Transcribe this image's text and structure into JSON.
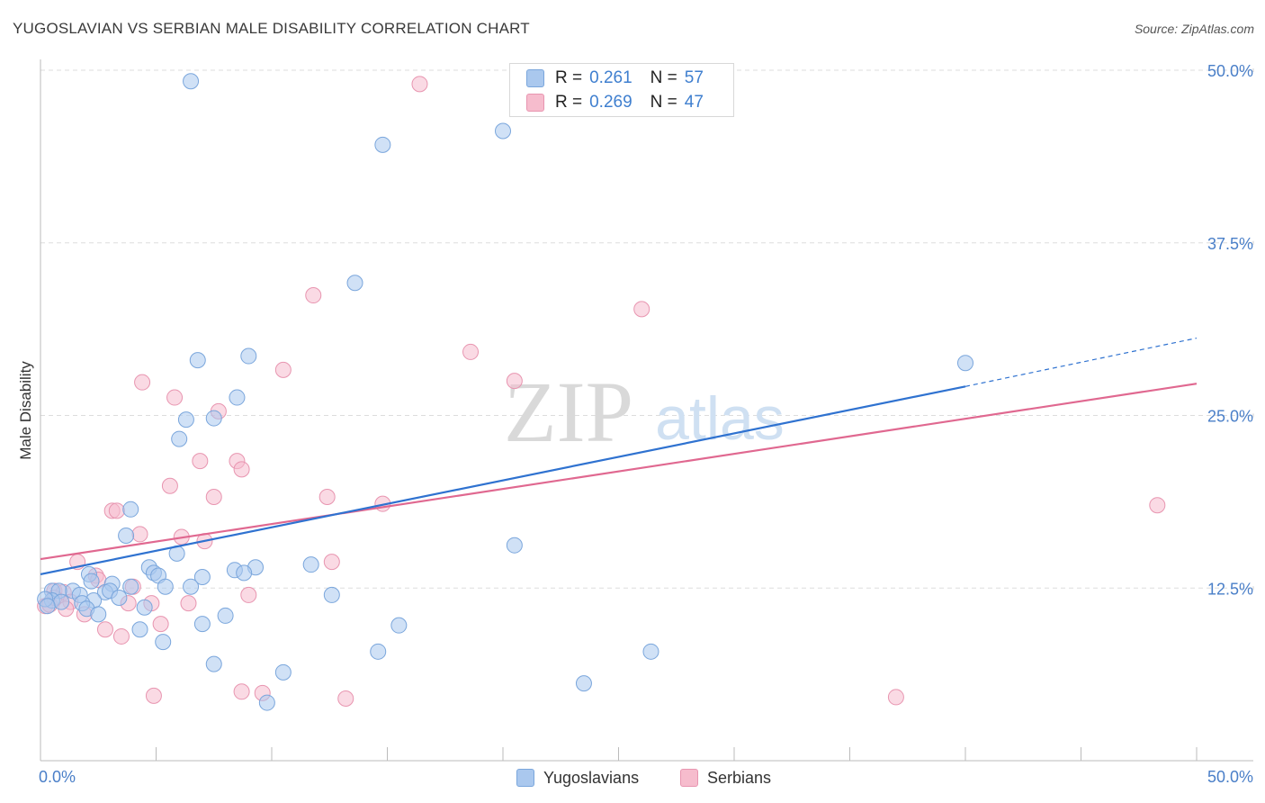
{
  "title": "YUGOSLAVIAN VS SERBIAN MALE DISABILITY CORRELATION CHART",
  "source": "Source: ZipAtlas.com",
  "watermark": {
    "zip": "ZIP",
    "atlas": "atlas"
  },
  "legend": {
    "rows": [
      {
        "r_label": "R =",
        "r_value": "0.261",
        "n_label": "N =",
        "n_value": "57"
      },
      {
        "r_label": "R =",
        "r_value": "0.269",
        "n_label": "N =",
        "n_value": "47"
      }
    ]
  },
  "colors": {
    "blue_fill": "#aac8ee",
    "blue_stroke": "#7aa6dc",
    "blue_line": "#2f72d0",
    "pink_fill": "#f6bccd",
    "pink_stroke": "#e895b0",
    "pink_line": "#e06890",
    "axis_label": "#4a7fc8",
    "grid": "#dddddd"
  },
  "chart_data": {
    "type": "scatter",
    "title": "YUGOSLAVIAN VS SERBIAN MALE DISABILITY CORRELATION CHART",
    "xlabel": "",
    "ylabel": "Male Disability",
    "xlim": [
      0,
      50
    ],
    "ylim": [
      0,
      50
    ],
    "x_tick_labels": [
      "0.0%",
      "50.0%"
    ],
    "y_ticks": [
      12.5,
      25.0,
      37.5,
      50.0
    ],
    "y_tick_labels": [
      "12.5%",
      "25.0%",
      "37.5%",
      "50.0%"
    ],
    "series": [
      {
        "name": "Yugoslavians",
        "r": 0.261,
        "n": 57,
        "trend": {
          "x0": 0,
          "y0": 13.5,
          "x1": 40,
          "y1": 27.1,
          "dash_to_x": 50,
          "dash_to_y": 30.6
        },
        "points": [
          [
            6.5,
            49.2
          ],
          [
            20,
            45.6
          ],
          [
            14.8,
            44.6
          ],
          [
            13.6,
            34.6
          ],
          [
            40,
            28.8
          ],
          [
            9,
            29.3
          ],
          [
            6.8,
            29
          ],
          [
            8.5,
            26.3
          ],
          [
            6.3,
            24.7
          ],
          [
            7.5,
            24.8
          ],
          [
            6,
            23.3
          ],
          [
            3.9,
            18.2
          ],
          [
            3.7,
            16.3
          ],
          [
            5.9,
            15
          ],
          [
            20.5,
            15.6
          ],
          [
            11.7,
            14.2
          ],
          [
            9.3,
            14
          ],
          [
            8.4,
            13.8
          ],
          [
            8.8,
            13.6
          ],
          [
            4.7,
            14
          ],
          [
            4.9,
            13.6
          ],
          [
            5.1,
            13.4
          ],
          [
            7,
            13.3
          ],
          [
            2.1,
            13.5
          ],
          [
            2.2,
            13
          ],
          [
            3.1,
            12.8
          ],
          [
            3.9,
            12.6
          ],
          [
            5.4,
            12.6
          ],
          [
            6.5,
            12.6
          ],
          [
            1.4,
            12.3
          ],
          [
            0.5,
            12.3
          ],
          [
            0.8,
            12.3
          ],
          [
            2.8,
            12.2
          ],
          [
            3.0,
            12.3
          ],
          [
            12.6,
            12
          ],
          [
            1.7,
            12
          ],
          [
            3.4,
            11.8
          ],
          [
            2.3,
            11.6
          ],
          [
            0.5,
            11.6
          ],
          [
            0.9,
            11.5
          ],
          [
            1.8,
            11.4
          ],
          [
            2.0,
            11.0
          ],
          [
            4.5,
            11.1
          ],
          [
            0.2,
            11.7
          ],
          [
            0.3,
            11.2
          ],
          [
            2.5,
            10.6
          ],
          [
            8,
            10.5
          ],
          [
            7,
            9.9
          ],
          [
            15.5,
            9.8
          ],
          [
            4.3,
            9.5
          ],
          [
            5.3,
            8.6
          ],
          [
            14.6,
            7.9
          ],
          [
            26.4,
            7.9
          ],
          [
            7.5,
            7
          ],
          [
            10.5,
            6.4
          ],
          [
            23.5,
            5.6
          ],
          [
            9.8,
            4.2
          ]
        ]
      },
      {
        "name": "Serbians",
        "r": 0.269,
        "n": 47,
        "trend": {
          "x0": 0,
          "y0": 14.6,
          "x1": 50,
          "y1": 27.3
        },
        "points": [
          [
            16.4,
            49
          ],
          [
            11.8,
            33.7
          ],
          [
            26,
            32.7
          ],
          [
            18.6,
            29.6
          ],
          [
            20.5,
            27.5
          ],
          [
            10.5,
            28.3
          ],
          [
            4.4,
            27.4
          ],
          [
            5.8,
            26.3
          ],
          [
            7.7,
            25.3
          ],
          [
            6.9,
            21.7
          ],
          [
            8.5,
            21.7
          ],
          [
            8.7,
            21.1
          ],
          [
            5.6,
            19.9
          ],
          [
            7.5,
            19.1
          ],
          [
            12.4,
            19.1
          ],
          [
            14.8,
            18.6
          ],
          [
            48.3,
            18.5
          ],
          [
            3.1,
            18.1
          ],
          [
            3.3,
            18.1
          ],
          [
            4.3,
            16.4
          ],
          [
            6.1,
            16.2
          ],
          [
            7.1,
            15.9
          ],
          [
            12.6,
            14.4
          ],
          [
            1.6,
            14.4
          ],
          [
            2.4,
            13.4
          ],
          [
            2.5,
            13.1
          ],
          [
            4.0,
            12.6
          ],
          [
            0.6,
            12.3
          ],
          [
            1.0,
            12.2
          ],
          [
            9.0,
            12
          ],
          [
            1.3,
            11.5
          ],
          [
            3.8,
            11.4
          ],
          [
            4.8,
            11.4
          ],
          [
            6.4,
            11.4
          ],
          [
            1.1,
            11.0
          ],
          [
            0.2,
            11.2
          ],
          [
            0.4,
            11.3
          ],
          [
            1.9,
            10.6
          ],
          [
            5.2,
            9.9
          ],
          [
            2.8,
            9.5
          ],
          [
            3.5,
            9
          ],
          [
            4.9,
            4.7
          ],
          [
            8.7,
            5
          ],
          [
            9.6,
            4.9
          ],
          [
            13.2,
            4.5
          ],
          [
            37,
            4.6
          ],
          [
            0.6,
            11.8
          ]
        ]
      }
    ]
  },
  "bottom_legend": {
    "items": [
      "Yugoslavians",
      "Serbians"
    ]
  }
}
